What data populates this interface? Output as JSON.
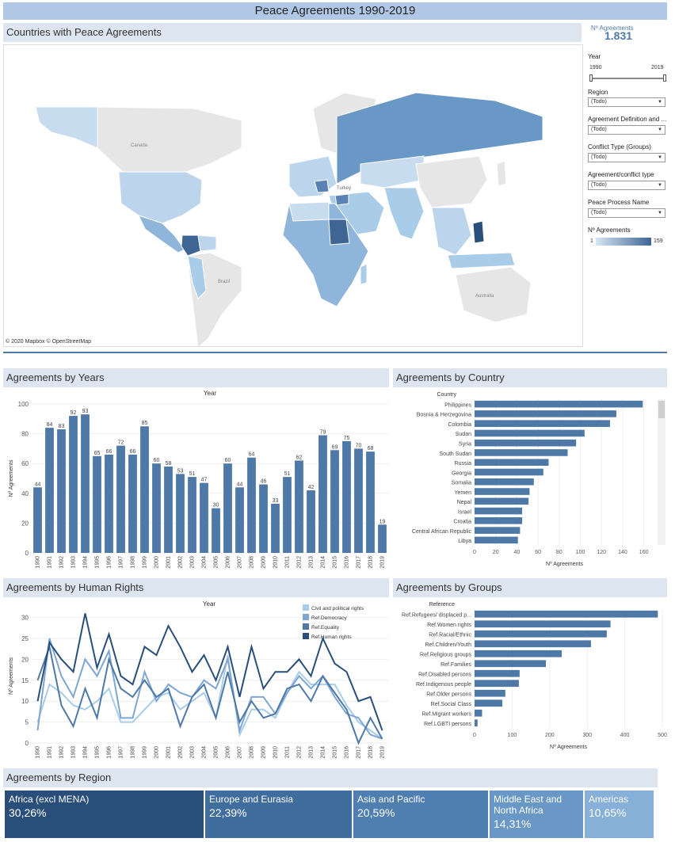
{
  "title": "Peace Agreements 1990-2019",
  "map": {
    "title": "Countries with Peace Agreements",
    "attribution": "© 2020 Mapbox © OpenStreetMap",
    "labels": [
      "Canada",
      "Brazil",
      "Australia",
      "Turkey"
    ]
  },
  "kpi": {
    "label": "Nº Agreements",
    "value": "1.831"
  },
  "filters": {
    "year_label": "Year",
    "year_min": "1990",
    "year_max": "2019",
    "region_label": "Region",
    "region_value": "(Todo)",
    "agreement_def_label": "Agreement Definition and ...",
    "agreement_def_value": "(Todo)",
    "conflict_type_label": "Conflict Type (Groups)",
    "conflict_type_value": "(Todo)",
    "agreement_conflict_label": "Agreement/conflict type",
    "agreement_conflict_value": "(Todo)",
    "peace_process_label": "Peace Process Name",
    "peace_process_value": "(Todo)",
    "color_legend_label": "Nº Agreements",
    "color_min": "1",
    "color_max": "159",
    "arrow": "▼"
  },
  "colors": {
    "bar": "#4e79a7",
    "header": "#b0c8e6",
    "panel": "#dde6f0"
  },
  "chart_data": [
    {
      "type": "bar",
      "title": "Agreements by Years",
      "xlabel": "Year",
      "ylabel": "Nº Agreements",
      "ylim": [
        0,
        100
      ],
      "yticks": [
        0,
        20,
        40,
        60,
        80,
        100
      ],
      "categories": [
        "1990",
        "1991",
        "1992",
        "1993",
        "1994",
        "1995",
        "1996",
        "1997",
        "1998",
        "1999",
        "2000",
        "2001",
        "2002",
        "2003",
        "2004",
        "2005",
        "2006",
        "2007",
        "2008",
        "2009",
        "2010",
        "2011",
        "2012",
        "2013",
        "2014",
        "2015",
        "2016",
        "2017",
        "2018",
        "2019"
      ],
      "values": [
        44,
        84,
        83,
        92,
        93,
        65,
        66,
        72,
        66,
        85,
        60,
        58,
        53,
        51,
        47,
        30,
        60,
        44,
        64,
        46,
        33,
        51,
        62,
        42,
        79,
        69,
        75,
        70,
        68,
        19
      ]
    },
    {
      "type": "bar",
      "title": "Agreements by Country",
      "ylabel": "Country",
      "xlabel": "Nº Agreements",
      "xlim": [
        0,
        170
      ],
      "xticks": [
        0,
        20,
        40,
        60,
        80,
        100,
        120,
        140,
        160
      ],
      "categories": [
        "Philippines",
        "Bosnia & Herzegovina",
        "Colombia",
        "Sudan",
        "Syria",
        "South Sudan",
        "Russia",
        "Georgia",
        "Somalia",
        "Yemen",
        "Nepal",
        "Israel",
        "Croatia",
        "Central African Republic",
        "Libya"
      ],
      "values": [
        159,
        134,
        128,
        104,
        96,
        88,
        70,
        65,
        56,
        52,
        51,
        45,
        45,
        43,
        41
      ]
    },
    {
      "type": "line",
      "title": "Agreements by Human Rights",
      "xlabel": "Year",
      "ylabel": "Nº Agreements",
      "ylim": [
        0,
        32
      ],
      "yticks": [
        0,
        5,
        10,
        15,
        20,
        25,
        30
      ],
      "x": [
        "1990",
        "1991",
        "1992",
        "1993",
        "1994",
        "1995",
        "1996",
        "1997",
        "1998",
        "1999",
        "2000",
        "2001",
        "2002",
        "2003",
        "2004",
        "2005",
        "2006",
        "2007",
        "2008",
        "2009",
        "2010",
        "2011",
        "2012",
        "2013",
        "2014",
        "2015",
        "2016",
        "2017",
        "2018",
        "2019"
      ],
      "series": [
        {
          "name": "Civil and political rights",
          "color": "#a9cce8",
          "values": [
            5,
            14,
            12,
            9,
            8,
            10,
            13,
            5,
            5,
            8,
            11,
            12,
            8,
            10,
            12,
            6,
            21,
            2,
            8,
            8,
            6,
            12,
            17,
            14,
            14,
            14,
            9,
            5,
            3,
            1
          ]
        },
        {
          "name": "Ref.Democracy",
          "color": "#7ea6d3",
          "values": [
            3,
            25,
            16,
            11,
            20,
            16,
            22,
            6,
            6,
            17,
            10,
            14,
            12,
            11,
            15,
            13,
            20,
            3,
            11,
            11,
            7,
            12,
            16,
            13,
            16,
            11,
            7,
            6,
            2,
            1
          ]
        },
        {
          "name": "Ref.Equality",
          "color": "#4e79a7",
          "values": [
            15,
            23,
            9,
            4,
            13,
            6,
            20,
            13,
            11,
            15,
            11,
            13,
            4,
            11,
            14,
            6,
            17,
            5,
            10,
            6,
            7,
            13,
            14,
            10,
            16,
            12,
            8,
            0,
            6,
            1
          ]
        },
        {
          "name": "Ref.Human rights",
          "color": "#2a4e7a",
          "values": [
            10,
            24,
            20,
            17,
            31,
            18,
            26,
            16,
            14,
            23,
            21,
            28,
            23,
            17,
            21,
            15,
            23,
            11,
            23,
            13,
            17,
            17,
            20,
            16,
            25,
            19,
            17,
            10,
            11,
            3
          ]
        }
      ]
    },
    {
      "type": "bar",
      "title": "Agreements by Groups",
      "ylabel": "Reference",
      "xlabel": "Nº Agreements",
      "xlim": [
        0,
        500
      ],
      "xticks": [
        0,
        100,
        200,
        300,
        400,
        500
      ],
      "categories": [
        "Ref.Refugees/ displaced p...",
        "Ref.Women rights",
        "Ref.Racial/Ethnic",
        "Ref.Children/Youth",
        "Ref.Religious groups",
        "Ref.Families",
        "Ref.Disabled persons",
        "Ref.Indigenous people",
        "Ref.Older persons",
        "Ref.Social Class",
        "Ref.Migrant workers",
        "Ref.LGBTI persons"
      ],
      "values": [
        488,
        362,
        352,
        310,
        232,
        190,
        120,
        118,
        82,
        74,
        20,
        8
      ]
    },
    {
      "type": "table",
      "title": "Agreements by Region",
      "categories": [
        "Africa (excl MENA)",
        "Europe and Eurasia",
        "Asia and Pacific",
        "Middle East and North Africa",
        "Americas"
      ],
      "values": [
        "30,26%",
        "22,39%",
        "20,59%",
        "14,31%",
        "10,65%"
      ],
      "shares": [
        30.26,
        22.39,
        20.59,
        14.31,
        10.65
      ],
      "colors": [
        "#2a4e7a",
        "#3f6d9e",
        "#4e7fb0",
        "#6a98c6",
        "#86b0d8"
      ]
    }
  ]
}
